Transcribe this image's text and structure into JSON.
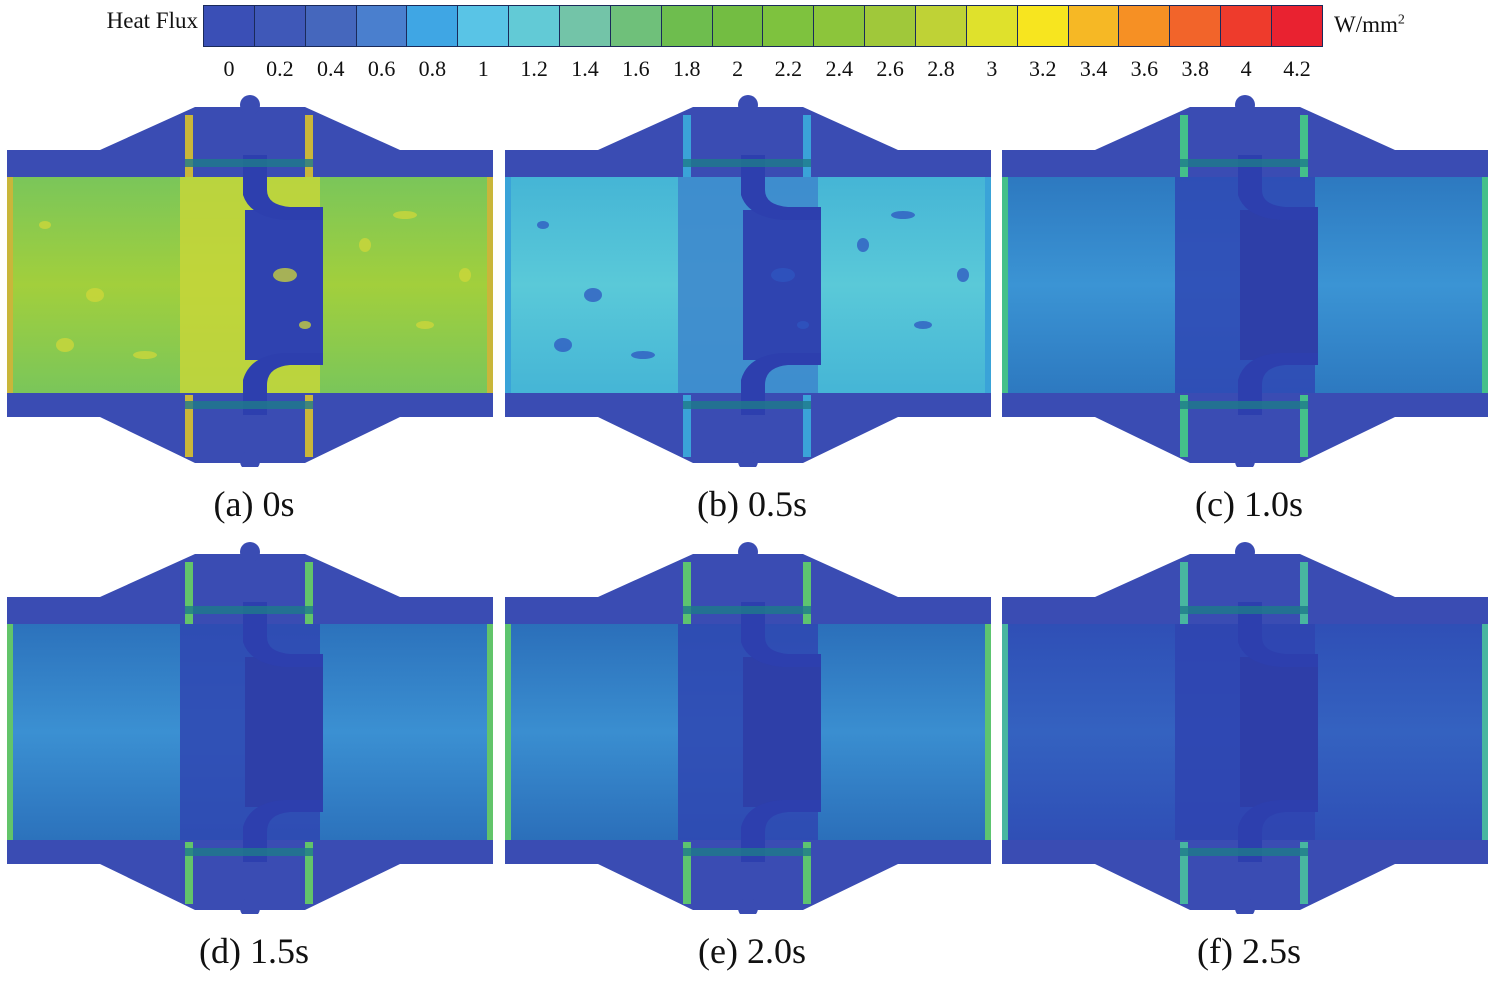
{
  "legend": {
    "title": "Heat Flux",
    "unit_base": "W/mm",
    "unit_exp": "2",
    "ticks": [
      "0",
      "0.2",
      "0.4",
      "0.6",
      "0.8",
      "1",
      "1.2",
      "1.4",
      "1.6",
      "1.8",
      "2",
      "2.2",
      "2.4",
      "2.6",
      "2.8",
      "3",
      "3.2",
      "3.4",
      "3.6",
      "3.8",
      "4",
      "4.2"
    ],
    "colors": [
      "#3a4fb6",
      "#3f58b8",
      "#4567bd",
      "#4a7fce",
      "#3fa6e4",
      "#59c4e6",
      "#62cad6",
      "#73c4a8",
      "#6fc07a",
      "#6ebd4e",
      "#73bd42",
      "#7ec23e",
      "#8cc53b",
      "#a0c83a",
      "#bfd236",
      "#dfe12c",
      "#f7e51f",
      "#f6b825",
      "#f69024",
      "#f2642a",
      "#ee3b2c",
      "#e92230"
    ]
  },
  "panels": [
    {
      "label": "(a) 0s",
      "state": 0
    },
    {
      "label": "(b) 0.5s",
      "state": 1
    },
    {
      "label": "(c) 1.0s",
      "state": 2
    },
    {
      "label": "(d) 1.5s",
      "state": 3
    },
    {
      "label": "(e) 2.0s",
      "state": 4
    },
    {
      "label": "(f) 2.5s",
      "state": 5
    }
  ]
}
